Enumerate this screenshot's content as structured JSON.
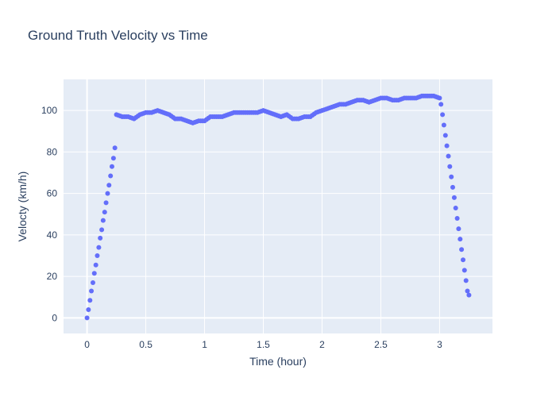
{
  "chart_data": {
    "type": "scatter",
    "title": "Ground Truth Velocity vs Time",
    "xlabel": "Time (hour)",
    "ylabel": "Velocty (km/h)",
    "xlim": [
      -0.2,
      3.45
    ],
    "ylim": [
      -7.5,
      115
    ],
    "x_ticks": [
      0,
      0.5,
      1,
      1.5,
      2,
      2.5,
      3
    ],
    "x_tick_labels": [
      "0",
      "0.5",
      "1",
      "1.5",
      "2",
      "2.5",
      "3"
    ],
    "y_ticks": [
      0,
      20,
      40,
      60,
      80,
      100
    ],
    "y_tick_labels": [
      "0",
      "20",
      "40",
      "60",
      "80",
      "100"
    ],
    "grid": true,
    "legend": "none",
    "colors": {
      "marker": "#636efa",
      "plot_bg": "#e5ecf6",
      "grid": "#ffffff",
      "text": "#2a3f5f"
    },
    "series": [
      {
        "x": [
          0,
          0.012,
          0.025,
          0.037,
          0.05,
          0.062,
          0.075,
          0.087,
          0.1,
          0.112,
          0.125,
          0.137,
          0.15,
          0.162,
          0.175,
          0.187,
          0.2,
          0.212,
          0.225,
          0.237,
          0.25,
          0.3,
          0.35,
          0.4,
          0.45,
          0.5,
          0.55,
          0.6,
          0.65,
          0.7,
          0.75,
          0.8,
          0.85,
          0.9,
          0.95,
          1.0,
          1.05,
          1.1,
          1.15,
          1.2,
          1.25,
          1.3,
          1.35,
          1.4,
          1.45,
          1.5,
          1.55,
          1.6,
          1.65,
          1.7,
          1.75,
          1.8,
          1.85,
          1.9,
          1.95,
          2.0,
          2.05,
          2.1,
          2.15,
          2.2,
          2.25,
          2.3,
          2.35,
          2.4,
          2.45,
          2.5,
          2.55,
          2.6,
          2.65,
          2.7,
          2.75,
          2.8,
          2.85,
          2.9,
          2.95,
          3.0,
          3.012,
          3.025,
          3.037,
          3.05,
          3.062,
          3.075,
          3.087,
          3.1,
          3.112,
          3.125,
          3.137,
          3.15,
          3.162,
          3.175,
          3.187,
          3.2,
          3.212,
          3.225,
          3.237,
          3.25
        ],
        "y": [
          0,
          4,
          8.5,
          13,
          17,
          21.5,
          25.5,
          30,
          34,
          38.5,
          42.5,
          47,
          51,
          55.5,
          60,
          64,
          68.5,
          73,
          77,
          82,
          98,
          97,
          97,
          96,
          98,
          99,
          99,
          100,
          99,
          98,
          96,
          96,
          95,
          94,
          95,
          95,
          97,
          97,
          97,
          98,
          99,
          99,
          99,
          99,
          99,
          100,
          99,
          98,
          97,
          98,
          96,
          96,
          97,
          97,
          99,
          100,
          101,
          102,
          103,
          103,
          104,
          105,
          105,
          104,
          105,
          106,
          106,
          105,
          105,
          106,
          106,
          106,
          107,
          107,
          107,
          106,
          103,
          98,
          93,
          88,
          83,
          78,
          73,
          68,
          63,
          58,
          53,
          48,
          43,
          38,
          33,
          28,
          23,
          18,
          13,
          11
        ]
      }
    ]
  }
}
